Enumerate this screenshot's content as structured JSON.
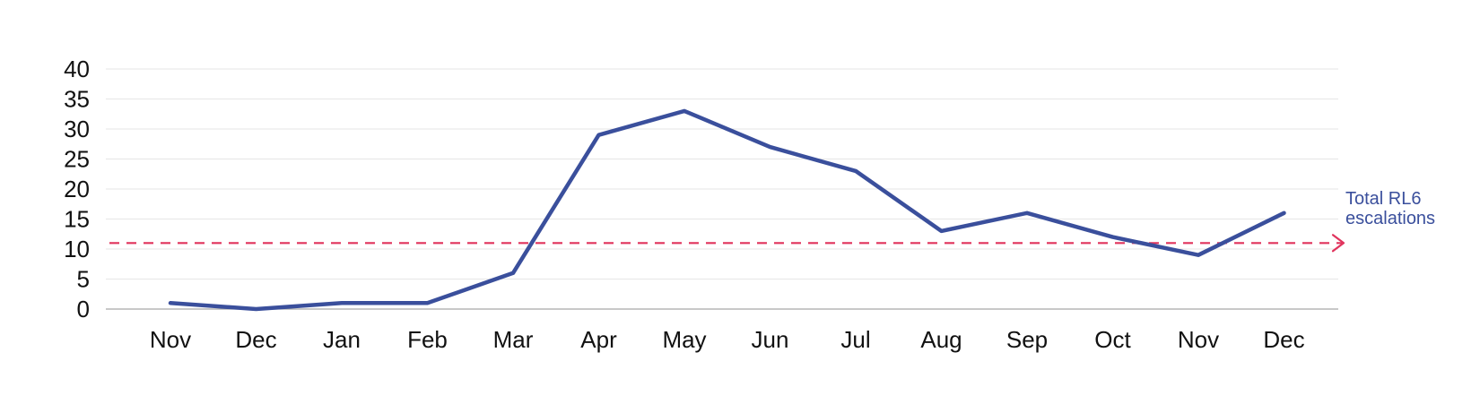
{
  "chart_data": {
    "type": "line",
    "categories": [
      "Nov",
      "Dec",
      "Jan",
      "Feb",
      "Mar",
      "Apr",
      "May",
      "Jun",
      "Jul",
      "Aug",
      "Sep",
      "Oct",
      "Nov",
      "Dec"
    ],
    "series": [
      {
        "name": "Total RL6 escalations",
        "values": [
          1,
          0,
          1,
          1,
          6,
          29,
          33,
          27,
          23,
          13,
          16,
          12,
          9,
          16
        ],
        "color": "#3a4f9c"
      }
    ],
    "reference_line": {
      "value": 11,
      "color": "#e0335c",
      "style": "dashed",
      "arrow": true
    },
    "ylim": [
      0,
      40
    ],
    "yticks": [
      0,
      5,
      10,
      15,
      20,
      25,
      30,
      35,
      40
    ],
    "grid": true,
    "legend": "inline-right",
    "title": "",
    "xlabel": "",
    "ylabel": "",
    "series_label_lines": [
      "Total RL6",
      "escalations"
    ]
  }
}
